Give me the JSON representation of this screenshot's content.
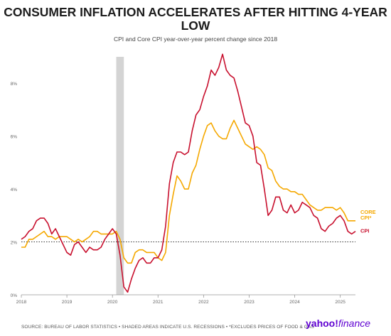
{
  "title": "CONSUMER INFLATION ACCELERATES AFTER HITTING 4-YEAR LOW",
  "subtitle": "CPI and Core CPI year-over-year percent change since 2018",
  "footer": "SOURCE: BUREAU OF LABOR STATISTICS • SHADED AREAS INDICATE U.S. RECESSIONS • *EXCLUDES PRICES OF FOOD & GAS",
  "brand": {
    "name": "yahoo!",
    "suffix": "finance"
  },
  "colors": {
    "cpi": "#c8102e",
    "core": "#f5a800",
    "recession": "#d4d4d4",
    "reference": "#333333",
    "brand": "#5f01d1"
  },
  "chart_data": {
    "type": "line",
    "title": "CONSUMER INFLATION ACCELERATES AFTER HITTING 4-YEAR LOW",
    "subtitle": "CPI and Core CPI year-over-year percent change since 2018",
    "xlim": [
      "2018-01",
      "2025-05"
    ],
    "ylim": [
      0,
      9
    ],
    "x_ticks": [
      "2018",
      "2019",
      "2020",
      "2021",
      "2022",
      "2023",
      "2024",
      "2025"
    ],
    "y_ticks": [
      {
        "value": 0,
        "label": "0%"
      },
      {
        "value": 2,
        "label": "2%"
      },
      {
        "value": 4,
        "label": "4%"
      },
      {
        "value": 6,
        "label": "6%"
      },
      {
        "value": 8,
        "label": "8%"
      }
    ],
    "reference_line": 2,
    "recession": {
      "start": "2020-02",
      "end": "2020-04"
    },
    "series": [
      {
        "name": "CPI",
        "label": "CPI",
        "color": "#c8102e",
        "x": [
          "2018-01",
          "2018-02",
          "2018-03",
          "2018-04",
          "2018-05",
          "2018-06",
          "2018-07",
          "2018-08",
          "2018-09",
          "2018-10",
          "2018-11",
          "2018-12",
          "2019-01",
          "2019-02",
          "2019-03",
          "2019-04",
          "2019-05",
          "2019-06",
          "2019-07",
          "2019-08",
          "2019-09",
          "2019-10",
          "2019-11",
          "2019-12",
          "2020-01",
          "2020-02",
          "2020-03",
          "2020-04",
          "2020-05",
          "2020-06",
          "2020-07",
          "2020-08",
          "2020-09",
          "2020-10",
          "2020-11",
          "2020-12",
          "2021-01",
          "2021-02",
          "2021-03",
          "2021-04",
          "2021-05",
          "2021-06",
          "2021-07",
          "2021-08",
          "2021-09",
          "2021-10",
          "2021-11",
          "2021-12",
          "2022-01",
          "2022-02",
          "2022-03",
          "2022-04",
          "2022-05",
          "2022-06",
          "2022-07",
          "2022-08",
          "2022-09",
          "2022-10",
          "2022-11",
          "2022-12",
          "2023-01",
          "2023-02",
          "2023-03",
          "2023-04",
          "2023-05",
          "2023-06",
          "2023-07",
          "2023-08",
          "2023-09",
          "2023-10",
          "2023-11",
          "2023-12",
          "2024-01",
          "2024-02",
          "2024-03",
          "2024-04",
          "2024-05",
          "2024-06",
          "2024-07",
          "2024-08",
          "2024-09",
          "2024-10",
          "2024-11",
          "2024-12",
          "2025-01",
          "2025-02",
          "2025-03",
          "2025-04",
          "2025-05"
        ],
        "values": [
          2.1,
          2.2,
          2.4,
          2.5,
          2.8,
          2.9,
          2.9,
          2.7,
          2.3,
          2.5,
          2.2,
          1.9,
          1.6,
          1.5,
          1.9,
          2.0,
          1.8,
          1.6,
          1.8,
          1.7,
          1.7,
          1.8,
          2.1,
          2.3,
          2.5,
          2.3,
          1.5,
          0.3,
          0.1,
          0.6,
          1.0,
          1.3,
          1.4,
          1.2,
          1.2,
          1.4,
          1.4,
          1.7,
          2.6,
          4.2,
          5.0,
          5.4,
          5.4,
          5.3,
          5.4,
          6.2,
          6.8,
          7.0,
          7.5,
          7.9,
          8.5,
          8.3,
          8.6,
          9.1,
          8.5,
          8.3,
          8.2,
          7.7,
          7.1,
          6.5,
          6.4,
          6.0,
          5.0,
          4.9,
          4.0,
          3.0,
          3.2,
          3.7,
          3.7,
          3.2,
          3.1,
          3.4,
          3.1,
          3.2,
          3.5,
          3.4,
          3.3,
          3.0,
          2.9,
          2.5,
          2.4,
          2.6,
          2.7,
          2.9,
          3.0,
          2.8,
          2.4,
          2.3,
          2.4
        ]
      },
      {
        "name": "CORE CPI*",
        "label": "CORE CPI*",
        "color": "#f5a800",
        "x": [
          "2018-01",
          "2018-02",
          "2018-03",
          "2018-04",
          "2018-05",
          "2018-06",
          "2018-07",
          "2018-08",
          "2018-09",
          "2018-10",
          "2018-11",
          "2018-12",
          "2019-01",
          "2019-02",
          "2019-03",
          "2019-04",
          "2019-05",
          "2019-06",
          "2019-07",
          "2019-08",
          "2019-09",
          "2019-10",
          "2019-11",
          "2019-12",
          "2020-01",
          "2020-02",
          "2020-03",
          "2020-04",
          "2020-05",
          "2020-06",
          "2020-07",
          "2020-08",
          "2020-09",
          "2020-10",
          "2020-11",
          "2020-12",
          "2021-01",
          "2021-02",
          "2021-03",
          "2021-04",
          "2021-05",
          "2021-06",
          "2021-07",
          "2021-08",
          "2021-09",
          "2021-10",
          "2021-11",
          "2021-12",
          "2022-01",
          "2022-02",
          "2022-03",
          "2022-04",
          "2022-05",
          "2022-06",
          "2022-07",
          "2022-08",
          "2022-09",
          "2022-10",
          "2022-11",
          "2022-12",
          "2023-01",
          "2023-02",
          "2023-03",
          "2023-04",
          "2023-05",
          "2023-06",
          "2023-07",
          "2023-08",
          "2023-09",
          "2023-10",
          "2023-11",
          "2023-12",
          "2024-01",
          "2024-02",
          "2024-03",
          "2024-04",
          "2024-05",
          "2024-06",
          "2024-07",
          "2024-08",
          "2024-09",
          "2024-10",
          "2024-11",
          "2024-12",
          "2025-01",
          "2025-02",
          "2025-03",
          "2025-04",
          "2025-05"
        ],
        "values": [
          1.8,
          1.8,
          2.1,
          2.1,
          2.2,
          2.3,
          2.4,
          2.2,
          2.2,
          2.1,
          2.2,
          2.2,
          2.2,
          2.1,
          2.0,
          2.1,
          2.0,
          2.1,
          2.2,
          2.4,
          2.4,
          2.3,
          2.3,
          2.3,
          2.3,
          2.4,
          2.1,
          1.4,
          1.2,
          1.2,
          1.6,
          1.7,
          1.7,
          1.6,
          1.6,
          1.6,
          1.4,
          1.3,
          1.6,
          3.0,
          3.8,
          4.5,
          4.3,
          4.0,
          4.0,
          4.6,
          4.9,
          5.5,
          6.0,
          6.4,
          6.5,
          6.2,
          6.0,
          5.9,
          5.9,
          6.3,
          6.6,
          6.3,
          6.0,
          5.7,
          5.6,
          5.5,
          5.6,
          5.5,
          5.3,
          4.8,
          4.7,
          4.3,
          4.1,
          4.0,
          4.0,
          3.9,
          3.9,
          3.8,
          3.8,
          3.6,
          3.4,
          3.3,
          3.2,
          3.2,
          3.3,
          3.3,
          3.3,
          3.2,
          3.3,
          3.1,
          2.8,
          2.8,
          2.8
        ]
      }
    ]
  }
}
